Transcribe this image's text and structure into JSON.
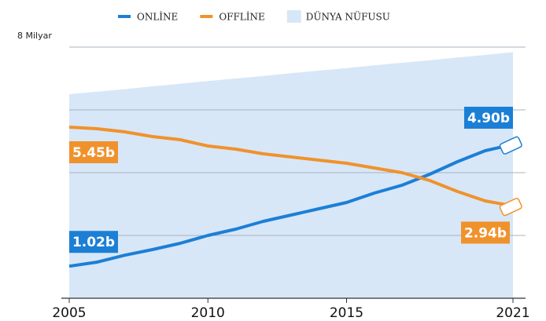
{
  "chart_data": {
    "type": "line",
    "x": [
      2005,
      2006,
      2007,
      2008,
      2009,
      2010,
      2011,
      2012,
      2013,
      2014,
      2015,
      2016,
      2017,
      2018,
      2019,
      2020,
      2021
    ],
    "series": [
      {
        "name": "DÜNYA NÜFUSU",
        "color": "#d7e7f8",
        "kind": "area",
        "values": [
          6.5,
          6.58,
          6.66,
          6.75,
          6.83,
          6.92,
          7.0,
          7.08,
          7.17,
          7.25,
          7.33,
          7.42,
          7.5,
          7.58,
          7.67,
          7.75,
          7.84
        ]
      },
      {
        "name": "ONLİNE",
        "color": "#1c7fd6",
        "kind": "line",
        "values": [
          1.02,
          1.15,
          1.37,
          1.55,
          1.75,
          2.0,
          2.2,
          2.45,
          2.65,
          2.85,
          3.05,
          3.35,
          3.6,
          3.95,
          4.35,
          4.7,
          4.9
        ],
        "value_labels": [
          "1.02b",
          null,
          null,
          null,
          null,
          null,
          null,
          null,
          null,
          null,
          null,
          null,
          null,
          null,
          null,
          null,
          "4.90b"
        ]
      },
      {
        "name": "OFFLİNE",
        "color": "#f0922c",
        "kind": "line",
        "values": [
          5.45,
          5.4,
          5.3,
          5.15,
          5.05,
          4.85,
          4.75,
          4.6,
          4.5,
          4.4,
          4.3,
          4.15,
          4.0,
          3.75,
          3.4,
          3.1,
          2.94
        ],
        "value_labels": [
          "5.45b",
          null,
          null,
          null,
          null,
          null,
          null,
          null,
          null,
          null,
          null,
          null,
          null,
          null,
          null,
          null,
          "2.94b"
        ]
      }
    ],
    "xlim": [
      2005,
      2021
    ],
    "xticks": [
      2005,
      2010,
      2015,
      2021
    ],
    "ylim": [
      0,
      8
    ],
    "yticks": [
      {
        "value": 2,
        "label": null
      },
      {
        "value": 4,
        "label": null
      },
      {
        "value": 6,
        "label": null
      },
      {
        "value": 8,
        "label": "8 Milyar"
      }
    ],
    "grid": true
  }
}
